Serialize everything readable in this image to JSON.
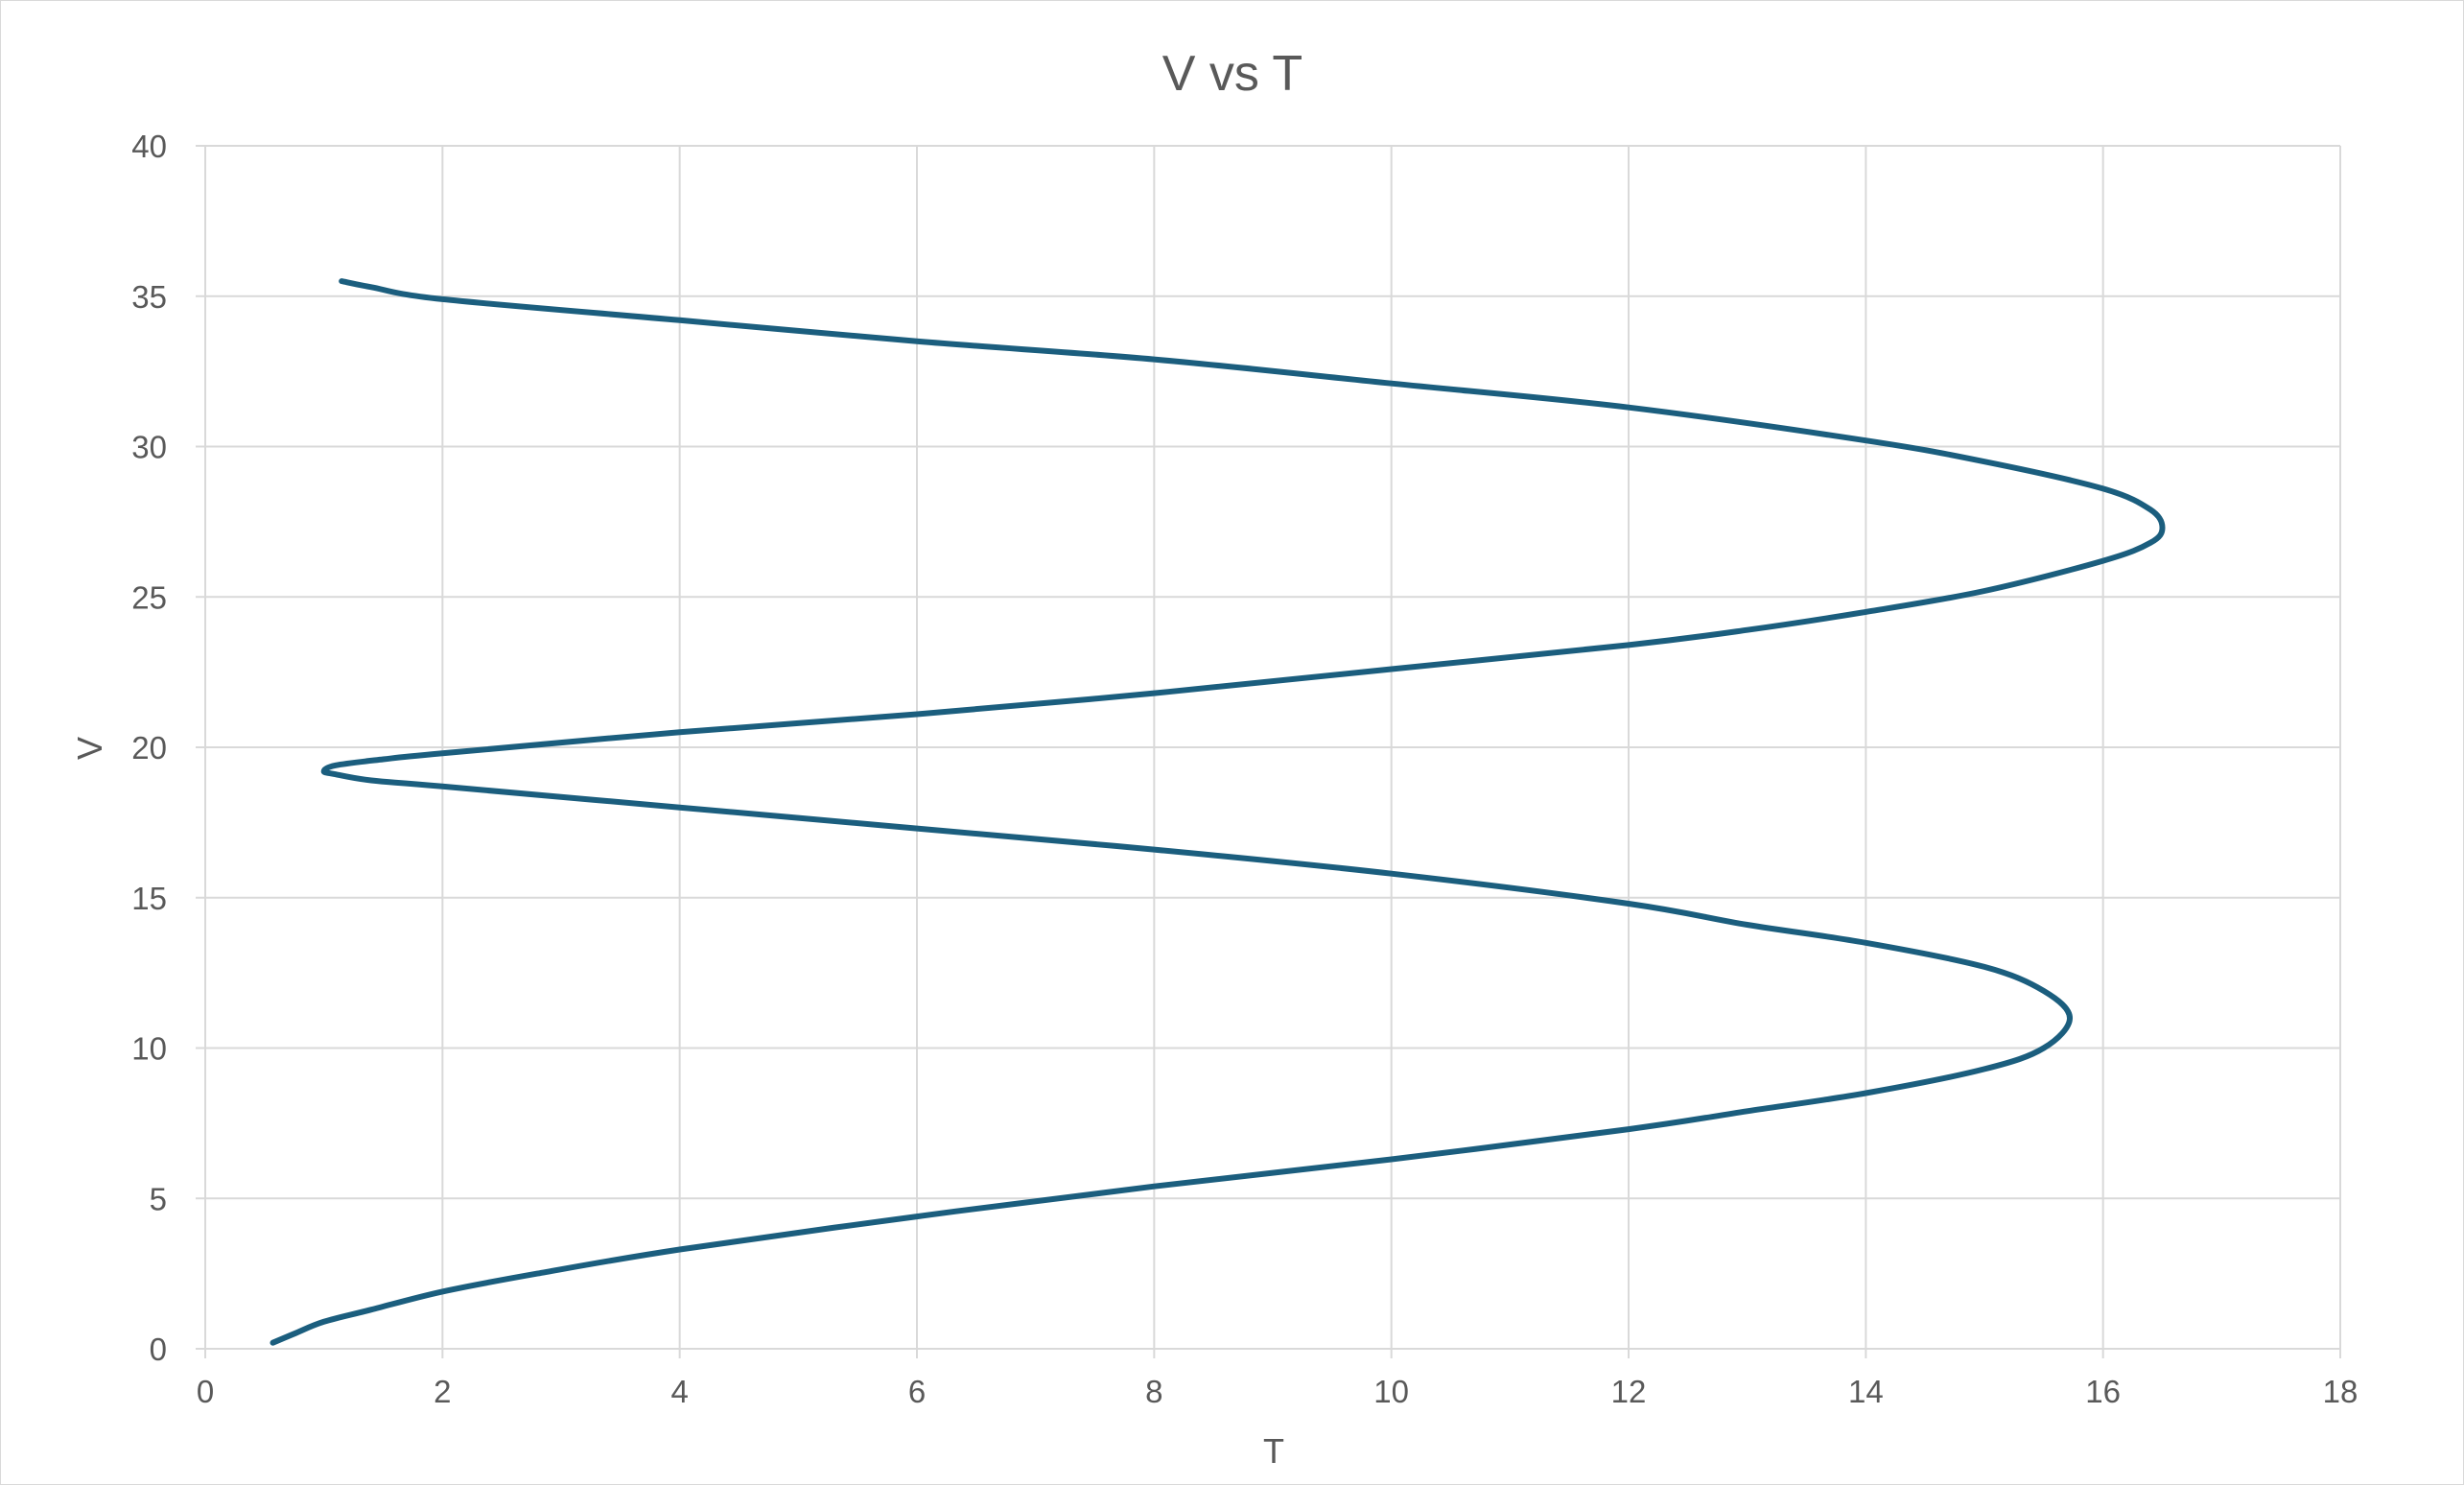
{
  "chart_data": {
    "type": "scatter",
    "title": "V vs T",
    "xlabel": "T",
    "ylabel": "V",
    "xlim": [
      0,
      18
    ],
    "ylim": [
      0,
      40
    ],
    "xticks": [
      0,
      2,
      4,
      6,
      8,
      10,
      12,
      14,
      16,
      18
    ],
    "yticks": [
      0,
      5,
      10,
      15,
      20,
      25,
      30,
      35,
      40
    ],
    "grid": true,
    "smooth": true,
    "colors": {
      "series": "#1b5e7e",
      "grid": "#d9d9d9",
      "text": "#595959"
    },
    "series": [
      {
        "x": [
          0.57,
          0.75,
          1.0,
          1.4,
          2.0,
          2.8,
          4.0,
          6.0,
          8.0,
          10.0,
          12.0,
          13.0,
          14.0,
          15.0,
          15.5,
          15.72,
          15.5,
          15.0,
          14.0,
          13.0,
          12.0,
          10.0,
          8.0,
          6.0,
          4.0,
          2.0,
          1.4,
          1.1,
          1.0,
          1.1,
          1.5,
          2.0,
          4.0,
          6.0,
          8.0,
          10.0,
          12.0,
          13.0,
          14.0,
          15.0,
          16.0,
          16.4,
          16.5,
          16.4,
          16.0,
          15.0,
          14.0,
          12.0,
          10.0,
          8.0,
          6.0,
          4.0,
          2.0,
          1.4,
          1.15
        ],
        "y": [
          0.2,
          0.5,
          0.9,
          1.3,
          1.9,
          2.5,
          3.3,
          4.4,
          5.4,
          6.3,
          7.3,
          7.9,
          8.5,
          9.3,
          10.0,
          11.0,
          11.9,
          12.7,
          13.5,
          14.1,
          14.8,
          15.8,
          16.6,
          17.3,
          18.0,
          18.7,
          18.9,
          19.1,
          19.2,
          19.4,
          19.6,
          19.8,
          20.5,
          21.1,
          21.8,
          22.6,
          23.4,
          23.9,
          24.5,
          25.2,
          26.2,
          26.8,
          27.3,
          27.9,
          28.6,
          29.5,
          30.2,
          31.3,
          32.1,
          32.9,
          33.5,
          34.2,
          34.9,
          35.3,
          35.5
        ]
      }
    ]
  }
}
